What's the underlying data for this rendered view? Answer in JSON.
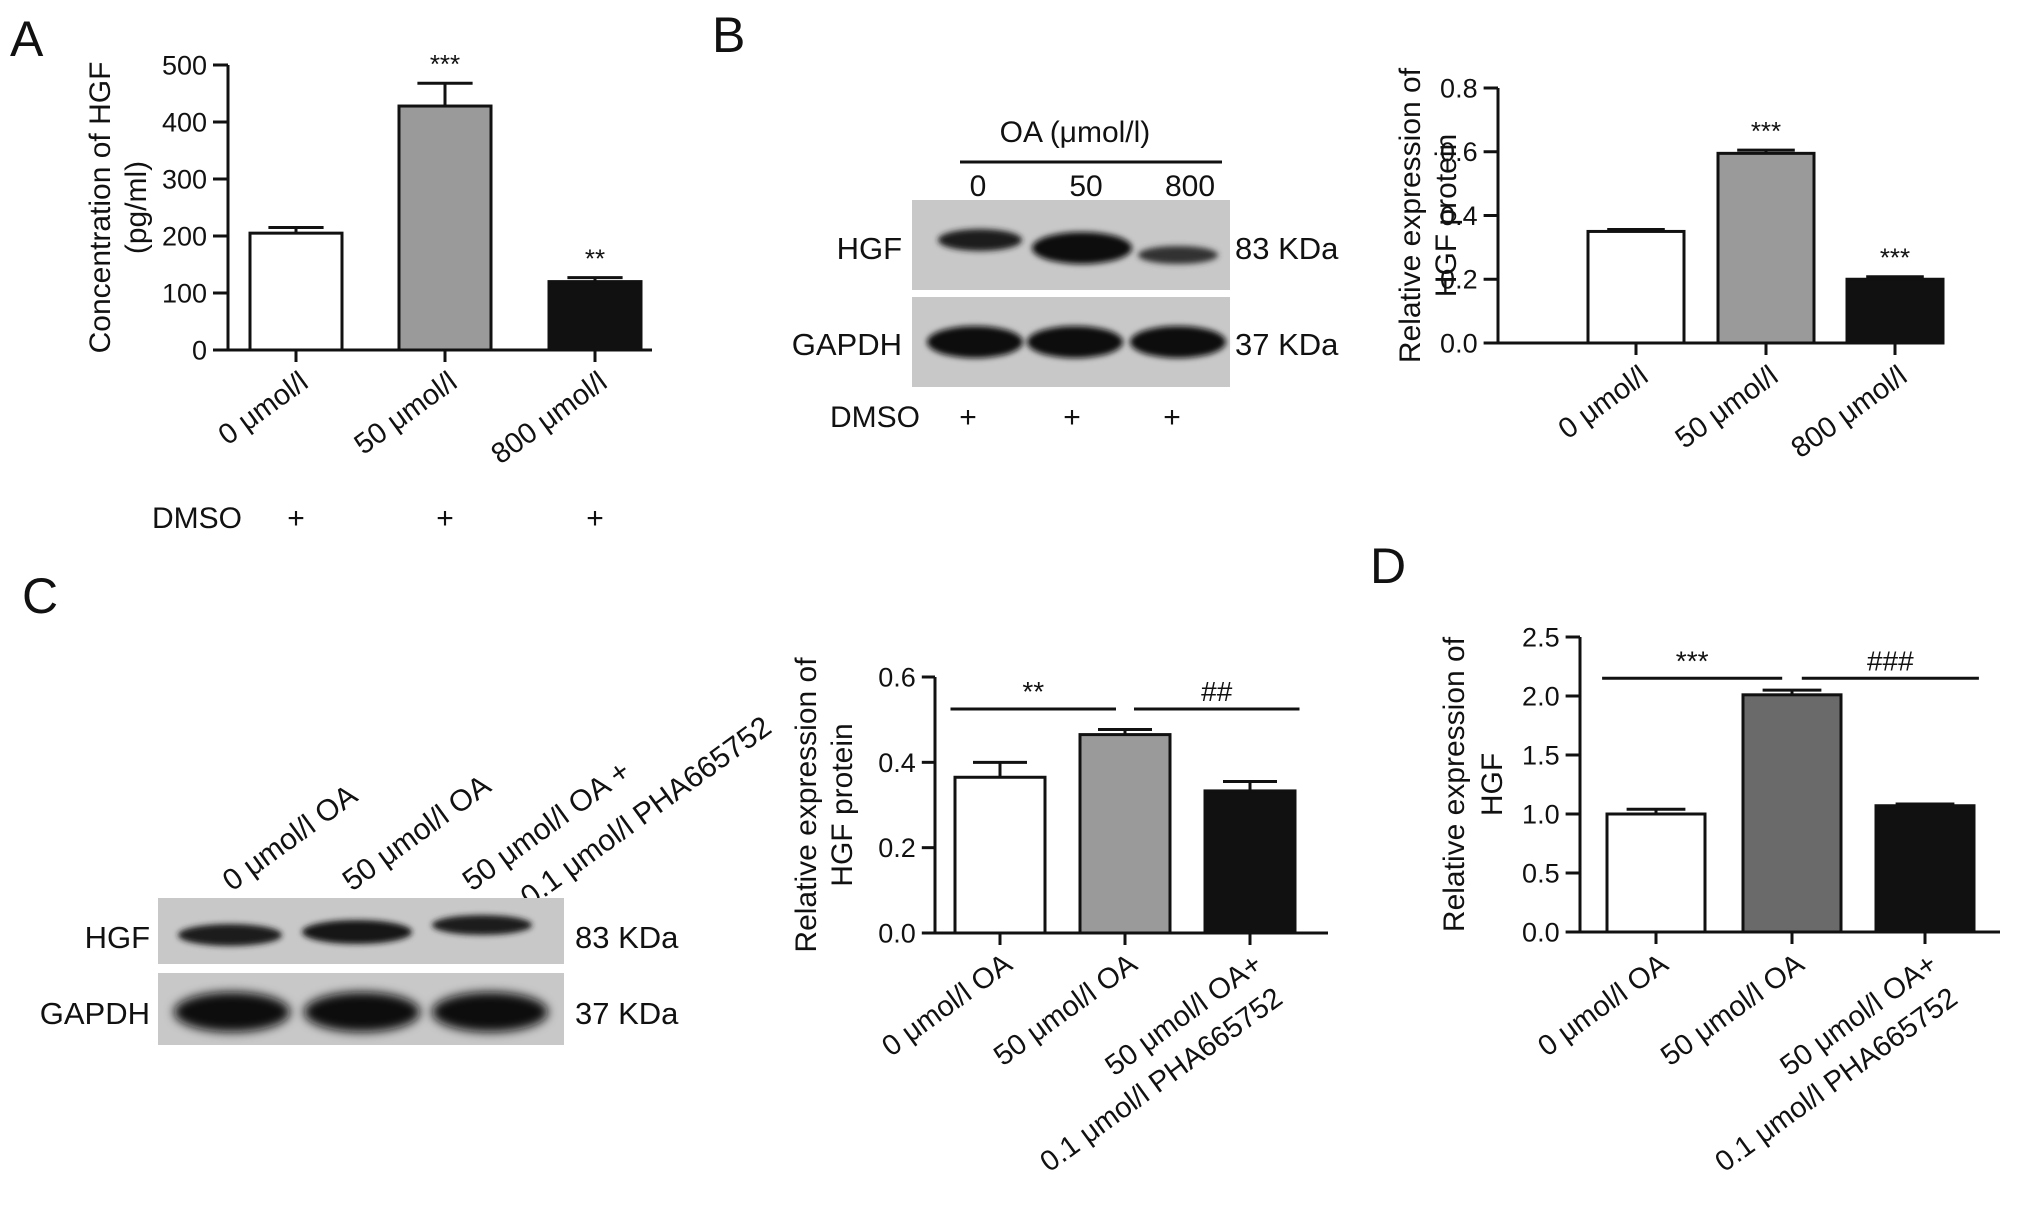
{
  "panels": {
    "A": {
      "letter": "A"
    },
    "B": {
      "letter": "B"
    },
    "C": {
      "letter": "C"
    },
    "D": {
      "letter": "D"
    }
  },
  "blotB": {
    "treatment_label": "OA (μmol/l)",
    "lane_labels": [
      "0",
      "50",
      "800"
    ],
    "rows": [
      {
        "protein": "HGF",
        "size": "83 KDa"
      },
      {
        "protein": "GAPDH",
        "size": "37 KDa"
      }
    ],
    "dmso_label": "DMSO",
    "dmso_marks": [
      "+",
      "+",
      "+"
    ]
  },
  "blotC": {
    "lane_labels": [
      "0 μmol/l OA",
      "50 μmol/l OA",
      "50 μmol/l OA +",
      "0.1 μmol/l PHA665752"
    ],
    "rows": [
      {
        "protein": "HGF",
        "size": "83 KDa"
      },
      {
        "protein": "GAPDH",
        "size": "37 KDa"
      }
    ]
  },
  "chart_data": [
    {
      "panel": "A",
      "type": "bar",
      "ylabel": [
        "Concentration of HGF",
        "(pg/ml)"
      ],
      "ylim": [
        0,
        500
      ],
      "yticks": [
        0,
        100,
        200,
        300,
        400,
        500
      ],
      "ytick_labels": [
        "0",
        "100",
        "200",
        "300",
        "400",
        "500"
      ],
      "categories": [
        [
          "0 μmol/l"
        ],
        [
          "50 μmol/l"
        ],
        [
          "800 μmol/l"
        ]
      ],
      "values": [
        205,
        428,
        120
      ],
      "errors": [
        10,
        40,
        7
      ],
      "colors": [
        "#ffffff",
        "#9a9a9a",
        "#111111"
      ],
      "annotations": [
        "",
        "***",
        "**"
      ],
      "dmso_label": "DMSO",
      "dmso_marks": [
        "+",
        "+",
        "+"
      ]
    },
    {
      "panel": "B",
      "type": "bar",
      "ylabel": [
        "Relative expression of",
        "HGF protein"
      ],
      "ylim": [
        0,
        0.8
      ],
      "yticks": [
        0,
        0.2,
        0.4,
        0.6,
        0.8
      ],
      "ytick_labels": [
        "0.0",
        "0.2",
        "0.4",
        "0.6",
        "0.8"
      ],
      "categories": [
        [
          "0 μmol/l"
        ],
        [
          "50 μmol/l"
        ],
        [
          "800 μmol/l"
        ]
      ],
      "values": [
        0.35,
        0.595,
        0.2
      ],
      "errors": [
        0.006,
        0.01,
        0.008
      ],
      "colors": [
        "#ffffff",
        "#9a9a9a",
        "#111111"
      ],
      "annotations": [
        "",
        "***",
        "***"
      ]
    },
    {
      "panel": "C",
      "type": "bar",
      "ylabel": [
        "Relative expression of",
        "HGF protein"
      ],
      "ylim": [
        0,
        0.6
      ],
      "yticks": [
        0,
        0.2,
        0.4,
        0.6
      ],
      "ytick_labels": [
        "0.0",
        "0.2",
        "0.4",
        "0.6"
      ],
      "categories": [
        [
          "0 μmol/l OA"
        ],
        [
          "50 μmol/l OA"
        ],
        [
          "50 μmol/l OA+",
          "0.1 μmol/l PHA665752"
        ]
      ],
      "values": [
        0.365,
        0.465,
        0.333
      ],
      "errors": [
        0.035,
        0.012,
        0.022
      ],
      "colors": [
        "#ffffff",
        "#9a9a9a",
        "#111111"
      ],
      "brackets": [
        {
          "from": 0,
          "to": 1,
          "y": 0.525,
          "label": "**"
        },
        {
          "from": 1,
          "to": 2,
          "y": 0.525,
          "label": "##"
        }
      ]
    },
    {
      "panel": "D",
      "type": "bar",
      "ylabel": [
        "Relative expression of",
        "HGF"
      ],
      "ylim": [
        0,
        2.5
      ],
      "yticks": [
        0,
        0.5,
        1.0,
        1.5,
        2.0,
        2.5
      ],
      "ytick_labels": [
        "0.0",
        "0.5",
        "1.0",
        "1.5",
        "2.0",
        "2.5"
      ],
      "categories": [
        [
          "0 μmol/l OA"
        ],
        [
          "50 μmol/l OA"
        ],
        [
          "50 μmol/l OA+",
          "0.1 μmol/l PHA665752"
        ]
      ],
      "values": [
        1.0,
        2.01,
        1.07
      ],
      "errors": [
        0.04,
        0.04,
        0.015
      ],
      "colors": [
        "#ffffff",
        "#6a6a6a",
        "#111111"
      ],
      "brackets": [
        {
          "from": 0,
          "to": 1,
          "y": 2.15,
          "label": "***"
        },
        {
          "from": 1,
          "to": 2,
          "y": 2.15,
          "label": "###"
        }
      ]
    }
  ]
}
